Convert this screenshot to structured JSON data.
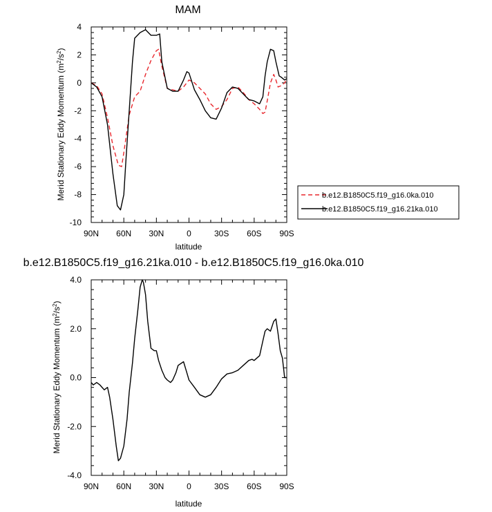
{
  "chart_data": [
    {
      "type": "line",
      "title": "MAM",
      "xlabel": "latitude",
      "ylabel_main": "Merid Stationary Eddy Momentum (m",
      "ylabel_sup1": "2",
      "ylabel_mid": "/s",
      "ylabel_sup2": "2",
      "ylabel_end": ")",
      "xlim": [
        90,
        -90
      ],
      "ylim": [
        -10,
        4
      ],
      "x_ticks": [
        90,
        60,
        30,
        0,
        -30,
        -60,
        -90
      ],
      "x_tick_labels": [
        "90N",
        "60N",
        "30N",
        "0",
        "30S",
        "60S",
        "90S"
      ],
      "y_ticks": [
        -10,
        -8,
        -6,
        -4,
        -2,
        0,
        2,
        4
      ],
      "y_tick_labels": [
        "-10",
        "-8",
        "-6",
        "-4",
        "-2",
        "0",
        "2",
        "4"
      ],
      "legend_position": "right",
      "series": [
        {
          "name": "b.e12.B1850C5.f19_g16.0ka.010",
          "color": "#e8262c",
          "dash": "dashed",
          "x": [
            90,
            85,
            80,
            75,
            70,
            65,
            62,
            60,
            55,
            50,
            45,
            40,
            35,
            30,
            28,
            25,
            20,
            15,
            10,
            5,
            0,
            -5,
            -10,
            -15,
            -20,
            -25,
            -30,
            -35,
            -40,
            -45,
            -50,
            -55,
            -60,
            -65,
            -68,
            -70,
            -72,
            -75,
            -78,
            -80,
            -82,
            -85,
            -88,
            -90
          ],
          "y": [
            0,
            -0.2,
            -0.8,
            -2.5,
            -4.5,
            -5.9,
            -6.0,
            -5.0,
            -2.3,
            -1.0,
            -0.6,
            0.6,
            1.6,
            2.3,
            2.4,
            1.2,
            -0.4,
            -0.5,
            -0.6,
            -0.3,
            0.2,
            0.0,
            -0.4,
            -0.8,
            -1.5,
            -1.9,
            -1.7,
            -1.2,
            -0.4,
            -0.3,
            -0.7,
            -1.2,
            -1.5,
            -1.9,
            -2.2,
            -2.1,
            -1.3,
            0.0,
            0.6,
            0.2,
            -0.3,
            -0.2,
            0.0,
            0.3
          ]
        },
        {
          "name": "b.e12.B1850C5.f19_g16.21ka.010",
          "color": "#000000",
          "dash": "solid",
          "x": [
            90,
            85,
            80,
            75,
            70,
            66,
            63,
            60,
            58,
            55,
            52,
            50,
            45,
            40,
            35,
            30,
            27,
            25,
            20,
            15,
            10,
            5,
            2,
            0,
            -5,
            -10,
            -15,
            -20,
            -25,
            -30,
            -35,
            -40,
            -45,
            -50,
            -55,
            -60,
            -65,
            -68,
            -70,
            -72,
            -75,
            -78,
            -80,
            -83,
            -85,
            -88,
            -90
          ],
          "y": [
            0,
            -0.3,
            -1.0,
            -3.0,
            -6.5,
            -8.8,
            -9.1,
            -8.0,
            -5.5,
            -2.0,
            1.5,
            3.2,
            3.6,
            3.8,
            3.4,
            3.4,
            3.5,
            1.5,
            -0.4,
            -0.6,
            -0.6,
            0.2,
            0.8,
            0.7,
            -0.5,
            -1.2,
            -2.0,
            -2.5,
            -2.6,
            -1.8,
            -0.7,
            -0.3,
            -0.4,
            -0.8,
            -1.2,
            -1.3,
            -1.5,
            -1.0,
            0.5,
            1.5,
            2.4,
            2.3,
            1.5,
            0.5,
            0.4,
            0.2,
            0.3
          ]
        }
      ]
    },
    {
      "type": "line",
      "title": "b.e12.B1850C5.f19_g16.21ka.010 - b.e12.B1850C5.f19_g16.0ka.010",
      "xlabel": "latitude",
      "ylabel_main": "Merid Stationary Eddy Momentum (m",
      "ylabel_sup1": "2",
      "ylabel_mid": "/s",
      "ylabel_sup2": "2",
      "ylabel_end": ")",
      "xlim": [
        90,
        -90
      ],
      "ylim": [
        -4,
        4
      ],
      "x_ticks": [
        90,
        60,
        30,
        0,
        -30,
        -60,
        -90
      ],
      "x_tick_labels": [
        "90N",
        "60N",
        "30N",
        "0",
        "30S",
        "60S",
        "90S"
      ],
      "y_ticks": [
        -4,
        -2,
        0,
        2,
        4
      ],
      "y_tick_labels": [
        "-4.0",
        "-2.0",
        "0.0",
        "2.0",
        "4.0"
      ],
      "series": [
        {
          "color": "#000000",
          "dash": "solid",
          "x": [
            90,
            88,
            85,
            82,
            80,
            78,
            75,
            73,
            70,
            67,
            65,
            63,
            60,
            57,
            55,
            52,
            50,
            47,
            45,
            43,
            42,
            40,
            38,
            35,
            32,
            30,
            28,
            25,
            22,
            20,
            17,
            15,
            12,
            10,
            5,
            2,
            0,
            -5,
            -10,
            -15,
            -20,
            -25,
            -30,
            -35,
            -40,
            -45,
            -50,
            -55,
            -58,
            -60,
            -65,
            -68,
            -70,
            -72,
            -75,
            -78,
            -80,
            -82,
            -84,
            -86,
            -88,
            -90
          ],
          "y": [
            -0.2,
            -0.3,
            -0.2,
            -0.3,
            -0.4,
            -0.5,
            -0.4,
            -0.8,
            -1.7,
            -2.8,
            -3.4,
            -3.3,
            -2.8,
            -1.7,
            -0.6,
            0.6,
            1.6,
            2.8,
            3.7,
            4.0,
            3.9,
            3.4,
            2.3,
            1.2,
            1.1,
            1.1,
            0.7,
            0.3,
            0.0,
            -0.1,
            -0.2,
            -0.1,
            0.2,
            0.5,
            0.65,
            0.2,
            -0.1,
            -0.4,
            -0.7,
            -0.8,
            -0.7,
            -0.4,
            -0.05,
            0.15,
            0.2,
            0.3,
            0.5,
            0.7,
            0.75,
            0.7,
            0.9,
            1.5,
            1.9,
            2.0,
            1.9,
            2.3,
            2.4,
            1.8,
            1.1,
            0.8,
            0.0,
            0.0
          ]
        }
      ]
    }
  ]
}
